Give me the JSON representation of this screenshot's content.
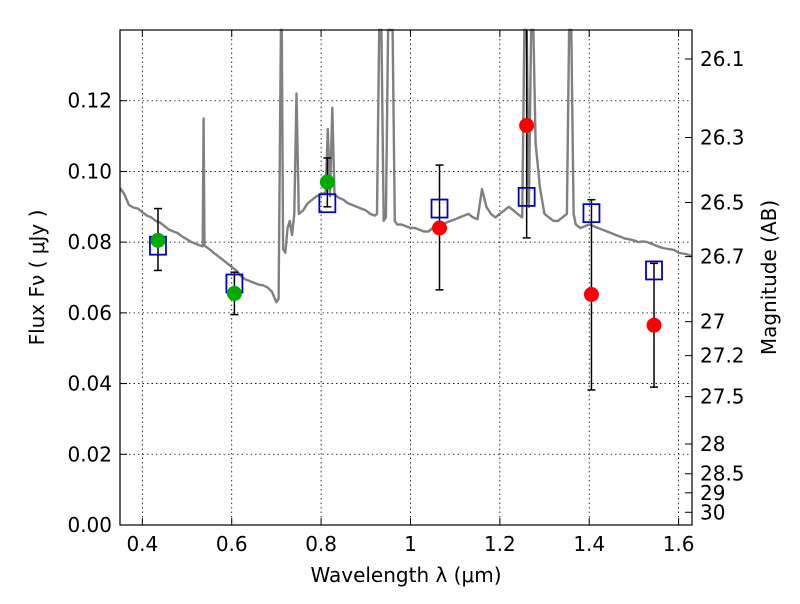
{
  "chart_data": {
    "type": "scatter",
    "xlabel": "Wavelength  λ (μm)",
    "ylabel": "Flux  Fν  ( μJy )",
    "y2label": "Magnitude (AB)",
    "xlim": [
      0.35,
      1.63
    ],
    "ylim": [
      0.0,
      0.14
    ],
    "grid": true,
    "x_ticks": [
      0.4,
      0.6,
      0.8,
      1.0,
      1.2,
      1.4,
      1.6
    ],
    "x_tick_labels": [
      "0.4",
      "0.6",
      "0.8",
      "1",
      "1.2",
      "1.4",
      "1.6"
    ],
    "y_ticks": [
      0.0,
      0.02,
      0.04,
      0.06,
      0.08,
      0.1,
      0.12
    ],
    "y_tick_labels": [
      "0.00",
      "0.02",
      "0.04",
      "0.06",
      "0.08",
      "0.10",
      "0.12"
    ],
    "y2_ticks": [
      {
        "label": "26.1",
        "flux": 0.1318
      },
      {
        "label": "26.3",
        "flux": 0.1096
      },
      {
        "label": "26.5",
        "flux": 0.0912
      },
      {
        "label": "26.7",
        "flux": 0.0759
      },
      {
        "label": "27",
        "flux": 0.0575
      },
      {
        "label": "27.2",
        "flux": 0.0479
      },
      {
        "label": "27.5",
        "flux": 0.0363
      },
      {
        "label": "28",
        "flux": 0.0229
      },
      {
        "label": "28.5",
        "flux": 0.0145
      },
      {
        "label": "29",
        "flux": 0.0091
      },
      {
        "label": "30",
        "flux": 0.0036
      }
    ],
    "model_spectrum": {
      "color": "#808080",
      "points": [
        [
          0.35,
          0.0953
        ],
        [
          0.36,
          0.0935
        ],
        [
          0.37,
          0.0905
        ],
        [
          0.38,
          0.0898
        ],
        [
          0.39,
          0.0895
        ],
        [
          0.4,
          0.0885
        ],
        [
          0.41,
          0.0875
        ],
        [
          0.42,
          0.087
        ],
        [
          0.43,
          0.086
        ],
        [
          0.44,
          0.0855
        ],
        [
          0.45,
          0.0845
        ],
        [
          0.46,
          0.0835
        ],
        [
          0.47,
          0.083
        ],
        [
          0.48,
          0.0825
        ],
        [
          0.49,
          0.0815
        ],
        [
          0.5,
          0.0808
        ],
        [
          0.51,
          0.08
        ],
        [
          0.52,
          0.0795
        ],
        [
          0.53,
          0.079
        ],
        [
          0.535,
          0.0788
        ],
        [
          0.537,
          0.115
        ],
        [
          0.539,
          0.079
        ],
        [
          0.55,
          0.078
        ],
        [
          0.56,
          0.077
        ],
        [
          0.57,
          0.076
        ],
        [
          0.58,
          0.075
        ],
        [
          0.59,
          0.074
        ],
        [
          0.6,
          0.073
        ],
        [
          0.61,
          0.072
        ],
        [
          0.62,
          0.0705
        ],
        [
          0.63,
          0.0695
        ],
        [
          0.64,
          0.069
        ],
        [
          0.65,
          0.0685
        ],
        [
          0.66,
          0.068
        ],
        [
          0.67,
          0.0678
        ],
        [
          0.68,
          0.0672
        ],
        [
          0.69,
          0.066
        ],
        [
          0.7,
          0.063
        ],
        [
          0.705,
          0.064
        ],
        [
          0.71,
          0.14
        ],
        [
          0.712,
          0.14
        ],
        [
          0.715,
          0.078
        ],
        [
          0.72,
          0.077
        ],
        [
          0.725,
          0.084
        ],
        [
          0.73,
          0.086
        ],
        [
          0.735,
          0.082
        ],
        [
          0.74,
          0.088
        ],
        [
          0.745,
          0.122
        ],
        [
          0.75,
          0.088
        ],
        [
          0.76,
          0.089
        ],
        [
          0.77,
          0.091
        ],
        [
          0.78,
          0.092
        ],
        [
          0.79,
          0.093
        ],
        [
          0.8,
          0.0935
        ],
        [
          0.81,
          0.094
        ],
        [
          0.815,
          0.112
        ],
        [
          0.82,
          0.093
        ],
        [
          0.825,
          0.118
        ],
        [
          0.83,
          0.0935
        ],
        [
          0.84,
          0.0925
        ],
        [
          0.85,
          0.092
        ],
        [
          0.86,
          0.091
        ],
        [
          0.87,
          0.0905
        ],
        [
          0.88,
          0.09
        ],
        [
          0.89,
          0.0895
        ],
        [
          0.9,
          0.089
        ],
        [
          0.91,
          0.088
        ],
        [
          0.92,
          0.0875
        ],
        [
          0.925,
          0.088
        ],
        [
          0.93,
          0.14
        ],
        [
          0.935,
          0.14
        ],
        [
          0.94,
          0.086
        ],
        [
          0.945,
          0.087
        ],
        [
          0.95,
          0.14
        ],
        [
          0.955,
          0.14
        ],
        [
          0.96,
          0.14
        ],
        [
          0.965,
          0.086
        ],
        [
          0.97,
          0.085
        ],
        [
          0.98,
          0.085
        ],
        [
          0.99,
          0.0845
        ],
        [
          1.0,
          0.084
        ],
        [
          1.01,
          0.084
        ],
        [
          1.02,
          0.0835
        ],
        [
          1.03,
          0.083
        ],
        [
          1.04,
          0.083
        ],
        [
          1.05,
          0.084
        ],
        [
          1.06,
          0.0845
        ],
        [
          1.07,
          0.085
        ],
        [
          1.08,
          0.0855
        ],
        [
          1.09,
          0.086
        ],
        [
          1.1,
          0.0865
        ],
        [
          1.11,
          0.087
        ],
        [
          1.12,
          0.0875
        ],
        [
          1.13,
          0.088
        ],
        [
          1.14,
          0.087
        ],
        [
          1.15,
          0.0865
        ],
        [
          1.16,
          0.095
        ],
        [
          1.17,
          0.09
        ],
        [
          1.18,
          0.088
        ],
        [
          1.19,
          0.087
        ],
        [
          1.2,
          0.088
        ],
        [
          1.21,
          0.089
        ],
        [
          1.22,
          0.09
        ],
        [
          1.23,
          0.089
        ],
        [
          1.24,
          0.088
        ],
        [
          1.25,
          0.087
        ],
        [
          1.255,
          0.14
        ],
        [
          1.26,
          0.14
        ],
        [
          1.265,
          0.09
        ],
        [
          1.27,
          0.14
        ],
        [
          1.275,
          0.14
        ],
        [
          1.28,
          0.108
        ],
        [
          1.29,
          0.095
        ],
        [
          1.3,
          0.088
        ],
        [
          1.31,
          0.087
        ],
        [
          1.32,
          0.086
        ],
        [
          1.33,
          0.086
        ],
        [
          1.34,
          0.087
        ],
        [
          1.35,
          0.088
        ],
        [
          1.355,
          0.14
        ],
        [
          1.36,
          0.14
        ],
        [
          1.365,
          0.088
        ],
        [
          1.37,
          0.085
        ],
        [
          1.38,
          0.084
        ],
        [
          1.39,
          0.0845
        ],
        [
          1.4,
          0.085
        ],
        [
          1.41,
          0.0845
        ],
        [
          1.42,
          0.084
        ],
        [
          1.43,
          0.0835
        ],
        [
          1.44,
          0.083
        ],
        [
          1.45,
          0.0825
        ],
        [
          1.46,
          0.082
        ],
        [
          1.47,
          0.0815
        ],
        [
          1.48,
          0.081
        ],
        [
          1.49,
          0.0808
        ],
        [
          1.5,
          0.0805
        ],
        [
          1.51,
          0.08
        ],
        [
          1.52,
          0.0802
        ],
        [
          1.53,
          0.08
        ],
        [
          1.54,
          0.0795
        ],
        [
          1.55,
          0.079
        ],
        [
          1.56,
          0.0785
        ],
        [
          1.57,
          0.0782
        ],
        [
          1.58,
          0.078
        ],
        [
          1.59,
          0.0778
        ],
        [
          1.6,
          0.077
        ],
        [
          1.61,
          0.0768
        ],
        [
          1.62,
          0.0765
        ],
        [
          1.63,
          0.076
        ]
      ]
    },
    "model_photometry": {
      "marker": "open-square",
      "color": "#0000cc",
      "points": [
        {
          "x": 0.435,
          "y": 0.079
        },
        {
          "x": 0.606,
          "y": 0.0683
        },
        {
          "x": 0.814,
          "y": 0.091
        },
        {
          "x": 1.065,
          "y": 0.0895
        },
        {
          "x": 1.26,
          "y": 0.0928
        },
        {
          "x": 1.405,
          "y": 0.0882
        },
        {
          "x": 1.545,
          "y": 0.072
        }
      ]
    },
    "observed_green": {
      "marker": "filled-circle",
      "color": "#00aa00",
      "points": [
        {
          "x": 0.435,
          "y": 0.0805,
          "yerr_low": 0.072,
          "yerr_high": 0.0895
        },
        {
          "x": 0.606,
          "y": 0.0655,
          "yerr_low": 0.0595,
          "yerr_high": 0.0715
        },
        {
          "x": 0.814,
          "y": 0.097,
          "yerr_low": 0.09,
          "yerr_high": 0.1038
        }
      ]
    },
    "observed_red": {
      "marker": "filled-circle",
      "color": "#ff0000",
      "points": [
        {
          "x": 1.065,
          "y": 0.084,
          "yerr_low": 0.0665,
          "yerr_high": 0.1018
        },
        {
          "x": 1.26,
          "y": 0.113,
          "yerr_low": 0.0812,
          "yerr_high": 0.14
        },
        {
          "x": 1.405,
          "y": 0.0652,
          "yerr_low": 0.0382,
          "yerr_high": 0.092
        },
        {
          "x": 1.545,
          "y": 0.0565,
          "yerr_low": 0.039,
          "yerr_high": 0.074
        }
      ]
    }
  }
}
